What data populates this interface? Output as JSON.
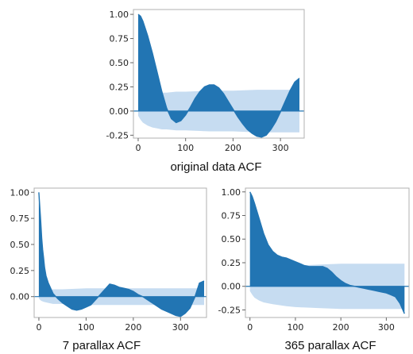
{
  "colors": {
    "series": "#2275b3",
    "confidence_band": "#bcd6ee",
    "frame": "#b0b0b0"
  },
  "chart_data": [
    {
      "type": "area",
      "title": "original data ACF",
      "xlabel": "",
      "ylabel": "",
      "xlim": [
        -10,
        350
      ],
      "ylim": [
        -0.28,
        1.05
      ],
      "xticks": [
        0,
        100,
        200,
        300
      ],
      "yticks": [
        -0.25,
        0.0,
        0.25,
        0.5,
        0.75,
        1.0
      ],
      "ytick_labels": [
        "-0.25",
        "0.00",
        "0.25",
        "0.50",
        "0.75",
        "1.00"
      ],
      "grid": false,
      "series": [
        {
          "kind": "acf",
          "x": [
            0,
            5,
            10,
            20,
            30,
            40,
            50,
            60,
            70,
            80,
            90,
            100,
            110,
            120,
            130,
            140,
            150,
            160,
            170,
            180,
            190,
            200,
            210,
            220,
            230,
            240,
            250,
            260,
            270,
            280,
            290,
            300,
            310,
            320,
            330,
            340
          ],
          "values": [
            1.0,
            0.98,
            0.93,
            0.78,
            0.6,
            0.4,
            0.2,
            0.03,
            -0.08,
            -0.12,
            -0.1,
            -0.04,
            0.04,
            0.13,
            0.2,
            0.25,
            0.27,
            0.27,
            0.24,
            0.18,
            0.1,
            0.02,
            -0.06,
            -0.13,
            -0.19,
            -0.23,
            -0.26,
            -0.27,
            -0.25,
            -0.19,
            -0.11,
            -0.01,
            0.1,
            0.21,
            0.3,
            0.34
          ]
        },
        {
          "kind": "confidence_band",
          "x": [
            0,
            5,
            10,
            20,
            30,
            40,
            50,
            60,
            80,
            100,
            150,
            200,
            250,
            300,
            340
          ],
          "upper": [
            0.05,
            0.09,
            0.12,
            0.15,
            0.17,
            0.18,
            0.19,
            0.19,
            0.2,
            0.2,
            0.21,
            0.21,
            0.22,
            0.22,
            0.22
          ],
          "lower": [
            -0.05,
            -0.09,
            -0.12,
            -0.15,
            -0.17,
            -0.18,
            -0.19,
            -0.19,
            -0.2,
            -0.2,
            -0.21,
            -0.21,
            -0.22,
            -0.22,
            -0.22
          ]
        }
      ]
    },
    {
      "type": "area",
      "title": "7 parallax ACF",
      "xlabel": "",
      "ylabel": "",
      "xlim": [
        -10,
        355
      ],
      "ylim": [
        -0.2,
        1.04
      ],
      "xticks": [
        0,
        100,
        200,
        300
      ],
      "yticks": [
        0.0,
        0.25,
        0.5,
        0.75,
        1.0
      ],
      "ytick_labels": [
        "0.00",
        "0.25",
        "0.50",
        "0.75",
        "1.00"
      ],
      "grid": false,
      "series": [
        {
          "kind": "acf",
          "x": [
            0,
            2,
            4,
            6,
            8,
            10,
            12,
            15,
            20,
            25,
            30,
            40,
            50,
            60,
            70,
            80,
            90,
            100,
            110,
            120,
            130,
            140,
            150,
            160,
            170,
            180,
            190,
            200,
            210,
            220,
            230,
            240,
            250,
            260,
            270,
            280,
            290,
            300,
            310,
            320,
            330,
            340,
            350
          ],
          "values": [
            1.0,
            0.86,
            0.72,
            0.56,
            0.45,
            0.37,
            0.28,
            0.2,
            0.13,
            0.08,
            0.03,
            -0.02,
            -0.06,
            -0.09,
            -0.12,
            -0.13,
            -0.12,
            -0.1,
            -0.08,
            -0.03,
            0.02,
            0.07,
            0.12,
            0.11,
            0.09,
            0.08,
            0.07,
            0.05,
            0.02,
            0.0,
            -0.03,
            -0.06,
            -0.09,
            -0.12,
            -0.14,
            -0.16,
            -0.18,
            -0.19,
            -0.16,
            -0.11,
            -0.01,
            0.13,
            0.15
          ]
        },
        {
          "kind": "confidence_band",
          "x": [
            0,
            5,
            10,
            20,
            30,
            50,
            100,
            200,
            300,
            350
          ],
          "upper": [
            0.02,
            0.04,
            0.05,
            0.06,
            0.07,
            0.07,
            0.08,
            0.08,
            0.08,
            0.08
          ],
          "lower": [
            -0.02,
            -0.04,
            -0.05,
            -0.06,
            -0.07,
            -0.07,
            -0.08,
            -0.08,
            -0.08,
            -0.08
          ]
        }
      ]
    },
    {
      "type": "area",
      "title": "365 parallax ACF",
      "xlabel": "",
      "ylabel": "",
      "xlim": [
        -10,
        350
      ],
      "ylim": [
        -0.33,
        1.04
      ],
      "xticks": [
        0,
        100,
        200,
        300
      ],
      "yticks": [
        -0.25,
        0.0,
        0.25,
        0.5,
        0.75,
        1.0
      ],
      "ytick_labels": [
        "-0.25",
        "0.00",
        "0.25",
        "0.50",
        "0.75",
        "1.00"
      ],
      "grid": false,
      "series": [
        {
          "kind": "acf",
          "x": [
            0,
            5,
            10,
            20,
            30,
            40,
            50,
            60,
            70,
            80,
            90,
            100,
            110,
            120,
            130,
            140,
            150,
            160,
            170,
            180,
            190,
            200,
            210,
            220,
            230,
            240,
            250,
            260,
            270,
            280,
            290,
            300,
            310,
            320,
            330,
            340
          ],
          "values": [
            1.0,
            0.95,
            0.88,
            0.72,
            0.56,
            0.44,
            0.37,
            0.33,
            0.31,
            0.3,
            0.28,
            0.26,
            0.24,
            0.22,
            0.21,
            0.21,
            0.21,
            0.21,
            0.19,
            0.15,
            0.1,
            0.06,
            0.03,
            0.01,
            0.0,
            -0.01,
            -0.02,
            -0.03,
            -0.04,
            -0.05,
            -0.06,
            -0.07,
            -0.09,
            -0.11,
            -0.18,
            -0.29
          ]
        },
        {
          "kind": "confidence_band",
          "x": [
            0,
            5,
            10,
            20,
            30,
            50,
            80,
            100,
            150,
            200,
            250,
            300,
            340
          ],
          "upper": [
            0.05,
            0.09,
            0.12,
            0.15,
            0.17,
            0.19,
            0.21,
            0.22,
            0.23,
            0.24,
            0.24,
            0.24,
            0.24
          ],
          "lower": [
            -0.05,
            -0.09,
            -0.12,
            -0.15,
            -0.17,
            -0.19,
            -0.21,
            -0.22,
            -0.23,
            -0.24,
            -0.24,
            -0.24,
            -0.24
          ]
        }
      ]
    }
  ]
}
